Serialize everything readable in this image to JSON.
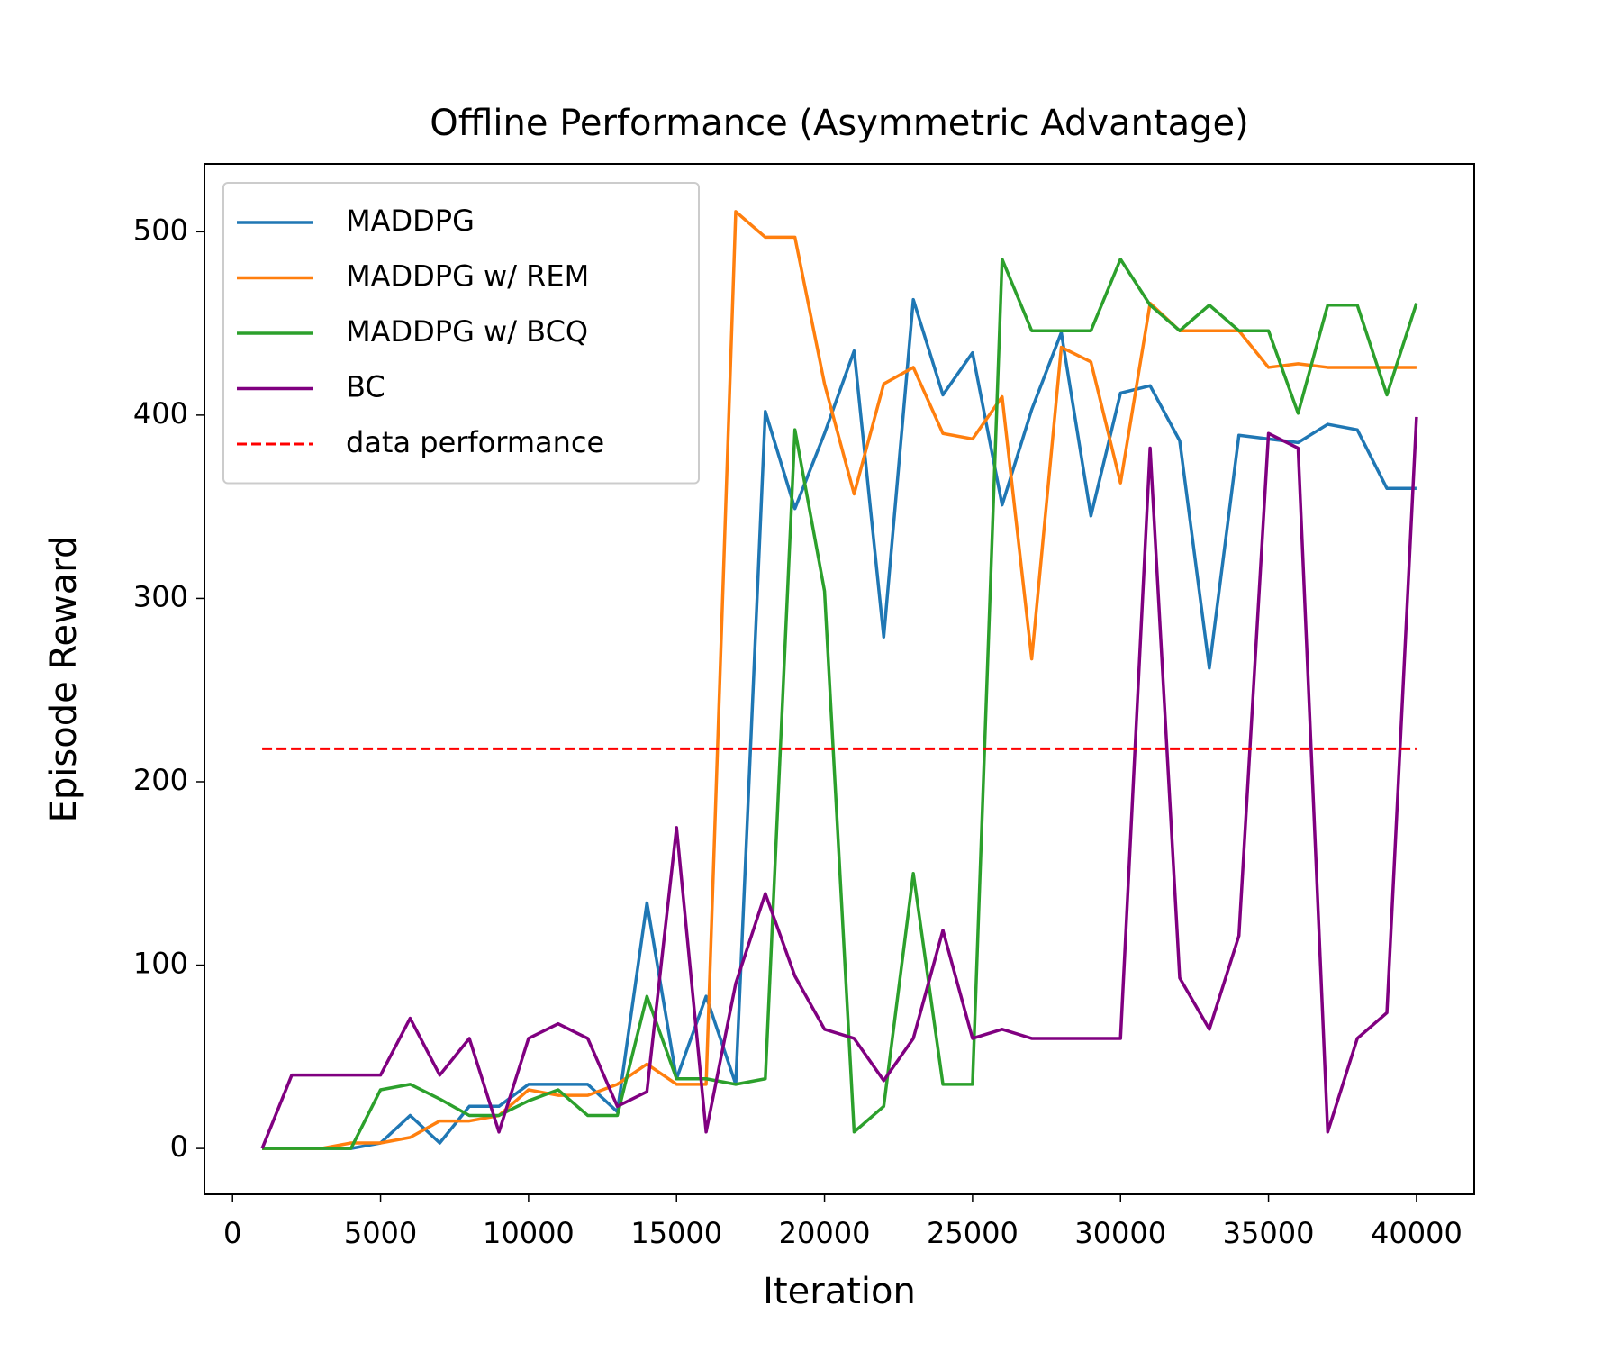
{
  "chart_data": {
    "type": "line",
    "title": "Offline Performance (Asymmetric Advantage)",
    "xlabel": "Iteration",
    "ylabel": "Episode Reward",
    "x": [
      1000,
      2000,
      3000,
      4000,
      5000,
      6000,
      7000,
      8000,
      9000,
      10000,
      11000,
      12000,
      13000,
      14000,
      15000,
      16000,
      17000,
      18000,
      19000,
      20000,
      21000,
      22000,
      23000,
      24000,
      25000,
      26000,
      27000,
      28000,
      29000,
      30000,
      31000,
      32000,
      33000,
      34000,
      35000,
      36000,
      37000,
      38000,
      39000,
      40000
    ],
    "series": [
      {
        "name": "MADDPG",
        "color": "#1f77b4",
        "values": [
          0,
          0,
          0,
          0,
          3,
          18,
          3,
          23,
          23,
          35,
          35,
          35,
          20,
          134,
          38,
          83,
          35,
          402,
          349,
          390,
          435,
          279,
          463,
          411,
          434,
          351,
          403,
          445,
          345,
          412,
          416,
          386,
          262,
          389,
          387,
          385,
          395,
          392,
          360,
          360
        ]
      },
      {
        "name": "MADDPG w/ REM",
        "color": "#ff7f0e",
        "values": [
          0,
          0,
          0,
          3,
          3,
          6,
          15,
          15,
          18,
          32,
          29,
          29,
          35,
          46,
          35,
          35,
          511,
          497,
          497,
          417,
          357,
          417,
          426,
          390,
          387,
          410,
          267,
          437,
          429,
          363,
          461,
          446,
          446,
          446,
          426,
          428,
          426,
          426,
          426,
          426
        ]
      },
      {
        "name": "MADDPG w/ BCQ",
        "color": "#2ca02c",
        "values": [
          0,
          0,
          0,
          0,
          32,
          35,
          27,
          18,
          18,
          26,
          32,
          18,
          18,
          83,
          38,
          38,
          35,
          38,
          392,
          304,
          9,
          23,
          150,
          35,
          35,
          485,
          446,
          446,
          446,
          485,
          460,
          446,
          460,
          446,
          446,
          401,
          460,
          460,
          411,
          461
        ]
      },
      {
        "name": "BC",
        "color": "#800080",
        "values": [
          0,
          40,
          40,
          40,
          40,
          71,
          40,
          60,
          9,
          60,
          68,
          60,
          23,
          31,
          175,
          9,
          90,
          139,
          94,
          65,
          60,
          37,
          60,
          119,
          60,
          65,
          60,
          60,
          60,
          60,
          382,
          93,
          65,
          116,
          390,
          382,
          9,
          60,
          74,
          399
        ]
      }
    ],
    "hlines": [
      {
        "name": "data performance",
        "color": "#ff0000",
        "y": 218,
        "xrange": [
          1000,
          40000
        ],
        "style": "dashed"
      }
    ],
    "xlim": [
      -950,
      41950
    ],
    "ylim": [
      -25,
      537
    ],
    "xticks": [
      0,
      5000,
      10000,
      15000,
      20000,
      25000,
      30000,
      35000,
      40000
    ],
    "yticks": [
      0,
      100,
      200,
      300,
      400,
      500
    ],
    "legend": "upper left",
    "grid": false
  }
}
